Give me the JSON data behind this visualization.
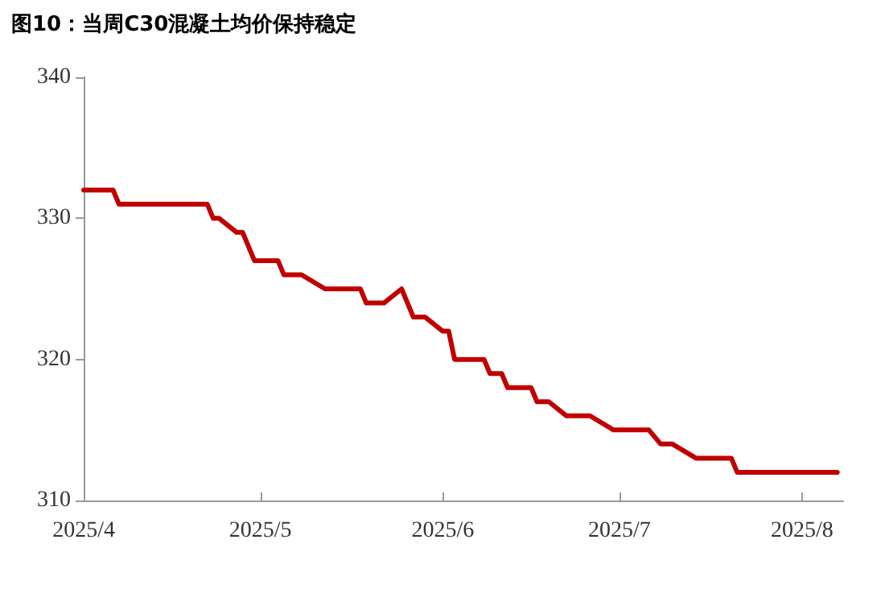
{
  "chart_data": {
    "type": "line",
    "title": "图10：当周C30混凝土均价保持稳定",
    "series": [
      {
        "color": "#c00000",
        "x": [
          "2025-04-01",
          "2025-04-06",
          "2025-04-07",
          "2025-04-22",
          "2025-04-23",
          "2025-04-24",
          "2025-04-27",
          "2025-04-28",
          "2025-04-29",
          "2025-04-30",
          "2025-05-04",
          "2025-05-05",
          "2025-05-08",
          "2025-05-12",
          "2025-05-18",
          "2025-05-19",
          "2025-05-22",
          "2025-05-25",
          "2025-05-27",
          "2025-05-29",
          "2025-06-01",
          "2025-06-02",
          "2025-06-03",
          "2025-06-08",
          "2025-06-09",
          "2025-06-11",
          "2025-06-12",
          "2025-06-16",
          "2025-06-17",
          "2025-06-19",
          "2025-06-22",
          "2025-06-26",
          "2025-06-30",
          "2025-07-06",
          "2025-07-08",
          "2025-07-10",
          "2025-07-14",
          "2025-07-20",
          "2025-07-21",
          "2025-08-07"
        ],
        "values": [
          332,
          332,
          331,
          331,
          330,
          330,
          329,
          329,
          328,
          327,
          327,
          326,
          326,
          325,
          325,
          324,
          324,
          325,
          323,
          323,
          322,
          322,
          320,
          320,
          319,
          319,
          318,
          318,
          317,
          317,
          316,
          316,
          315,
          315,
          314,
          314,
          313,
          313,
          312,
          312
        ]
      }
    ],
    "xlim": [
      "2025-04-01",
      "2025-08-08"
    ],
    "xticks": [
      {
        "value": "2025-04-01",
        "label": "2025/4"
      },
      {
        "value": "2025-05-01",
        "label": "2025/5"
      },
      {
        "value": "2025-06-01",
        "label": "2025/6"
      },
      {
        "value": "2025-07-01",
        "label": "2025/7"
      },
      {
        "value": "2025-08-01",
        "label": "2025/8"
      }
    ],
    "ylim": [
      310,
      340
    ],
    "yticks": [
      310,
      320,
      330,
      340
    ],
    "grid": false,
    "marker": "none",
    "line_style": "solid"
  }
}
